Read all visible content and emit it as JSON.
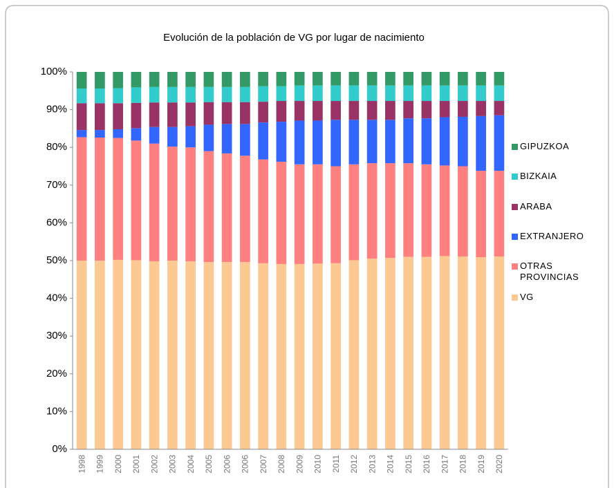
{
  "chart_data": {
    "type": "stacked_bar",
    "title": "Evolución de la población de VG por lugar de nacimiento",
    "categories": [
      "1998",
      "1999",
      "2000",
      "2001",
      "2002",
      "2003",
      "2004",
      "2005",
      "2006",
      "2006",
      "2007",
      "2008",
      "2009",
      "2010",
      "2011",
      "2012",
      "2013",
      "2014",
      "2015",
      "2016",
      "2017",
      "2018",
      "2019",
      "2020"
    ],
    "series": [
      {
        "name": "VG",
        "color": "#fcc993",
        "values": [
          50,
          50,
          50.2,
          50.1,
          49.8,
          50,
          49.8,
          49.6,
          49.6,
          49.6,
          49.3,
          49.1,
          49.1,
          49.2,
          49.3,
          50.1,
          50.5,
          50.7,
          51,
          51,
          51.2,
          51.1,
          50.9,
          51.1
        ]
      },
      {
        "name": "OTRAS PROVINCIAS",
        "color": "#ff8080",
        "values": [
          32.7,
          32.6,
          32.3,
          31.7,
          31.2,
          30.2,
          30.2,
          29.4,
          28.8,
          28.2,
          27.5,
          27.1,
          26.4,
          26.3,
          25.7,
          25.4,
          25.3,
          25.1,
          24.8,
          24.5,
          24,
          23.9,
          22.9,
          22.7
        ]
      },
      {
        "name": "EXTRANJERO",
        "color": "#3366ff",
        "values": [
          1.9,
          2,
          2.3,
          3.3,
          4.4,
          5.2,
          5.6,
          7,
          7.8,
          8.4,
          9.8,
          10.6,
          11.6,
          11.6,
          12.3,
          11.8,
          11.5,
          11.5,
          11.9,
          12.2,
          12.8,
          13.1,
          14.5,
          14.7
        ]
      },
      {
        "name": "ARABA",
        "color": "#993366",
        "values": [
          7.1,
          7.1,
          6.9,
          6.7,
          6.5,
          6.5,
          6.3,
          6,
          5.8,
          5.8,
          5.5,
          5.5,
          5.2,
          5.2,
          5,
          5,
          5,
          5,
          4.6,
          4.6,
          4.3,
          4.2,
          4,
          3.8
        ]
      },
      {
        "name": "BIZKAIA",
        "color": "#33cccc",
        "values": [
          3.9,
          3.9,
          4,
          4.1,
          4.1,
          4.1,
          4.1,
          4,
          4,
          4,
          4.1,
          3.9,
          4.1,
          4.1,
          4.1,
          4.1,
          4.1,
          4.1,
          4.1,
          4.1,
          4.1,
          4.1,
          4.1,
          4.1
        ]
      },
      {
        "name": "GIPUZKOA",
        "color": "#339966",
        "values": [
          4.4,
          4.4,
          4.3,
          4.1,
          4,
          4,
          4,
          4,
          4,
          4,
          3.8,
          3.8,
          3.6,
          3.6,
          3.6,
          3.6,
          3.6,
          3.6,
          3.6,
          3.6,
          3.6,
          3.6,
          3.6,
          3.6
        ]
      }
    ],
    "ylim": [
      0,
      100
    ],
    "yticks": [
      {
        "value": 0,
        "label": "0%"
      },
      {
        "value": 10,
        "label": "10%"
      },
      {
        "value": 20,
        "label": "20%"
      },
      {
        "value": 30,
        "label": "30%"
      },
      {
        "value": 40,
        "label": "40%"
      },
      {
        "value": 50,
        "label": "50%"
      },
      {
        "value": 60,
        "label": "60%"
      },
      {
        "value": 70,
        "label": "70%"
      },
      {
        "value": 80,
        "label": "80%"
      },
      {
        "value": 90,
        "label": "90%"
      },
      {
        "value": 100,
        "label": "100%"
      }
    ],
    "legend": "right"
  }
}
